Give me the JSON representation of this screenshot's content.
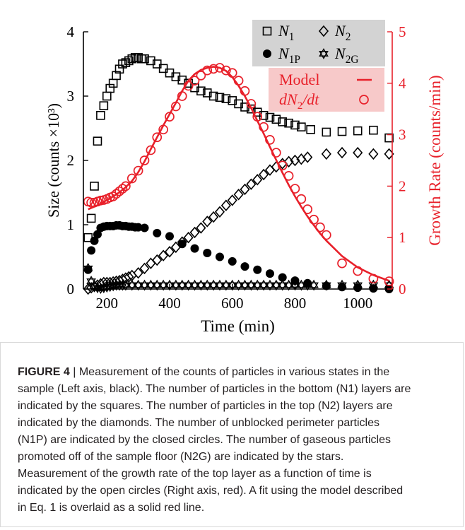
{
  "chart_data": {
    "type": "scatter",
    "xlabel": "Time (min)",
    "ylabel_left": "Size (counts ×10³)",
    "ylabel_right": "Growth Rate (counts/min)",
    "xlim": [
      125,
      1110
    ],
    "ylim_left": [
      0,
      4
    ],
    "ylim_right": [
      0,
      5
    ],
    "x_ticks": [
      200,
      400,
      600,
      800,
      1000
    ],
    "y_ticks_left": [
      0,
      1,
      2,
      3,
      4
    ],
    "y_ticks_right": [
      0,
      1,
      2,
      3,
      4,
      5
    ],
    "colors": {
      "left_axis": "#000000",
      "right_axis": "#e8202a",
      "legend_left_bg": "#d3d3d3",
      "legend_right_bg": "#f7c9c9"
    },
    "legend_left": [
      {
        "symbol": "square-open",
        "label": "N_1"
      },
      {
        "symbol": "diamond-open",
        "label": "N_2"
      },
      {
        "symbol": "circle-filled",
        "label": "N_1P"
      },
      {
        "symbol": "star-open",
        "label": "N_2G"
      }
    ],
    "legend_right": [
      {
        "symbol": "line",
        "label": "Model"
      },
      {
        "symbol": "circle-open",
        "label": "dN_2/dt"
      }
    ],
    "series": [
      {
        "name": "N_1",
        "axis": "left",
        "marker": "square-open",
        "x": [
          140,
          150,
          160,
          170,
          180,
          190,
          200,
          210,
          220,
          230,
          240,
          250,
          260,
          270,
          280,
          290,
          300,
          310,
          320,
          340,
          360,
          380,
          400,
          420,
          440,
          460,
          480,
          500,
          520,
          540,
          560,
          580,
          600,
          620,
          640,
          660,
          680,
          700,
          720,
          740,
          760,
          780,
          800,
          820,
          850,
          900,
          950,
          1000,
          1050,
          1100
        ],
        "y": [
          0.8,
          1.1,
          1.6,
          2.3,
          2.7,
          2.85,
          3.0,
          3.12,
          3.2,
          3.32,
          3.42,
          3.5,
          3.52,
          3.55,
          3.58,
          3.6,
          3.6,
          3.58,
          3.58,
          3.55,
          3.5,
          3.43,
          3.36,
          3.3,
          3.25,
          3.2,
          3.13,
          3.08,
          3.05,
          3.0,
          2.98,
          2.96,
          2.93,
          2.88,
          2.83,
          2.8,
          2.75,
          2.7,
          2.67,
          2.64,
          2.6,
          2.58,
          2.55,
          2.52,
          2.48,
          2.44,
          2.45,
          2.46,
          2.47,
          2.35
        ]
      },
      {
        "name": "N_2",
        "axis": "left",
        "marker": "diamond-open",
        "x": [
          140,
          150,
          160,
          170,
          180,
          190,
          200,
          210,
          220,
          230,
          240,
          250,
          260,
          270,
          280,
          300,
          320,
          340,
          360,
          380,
          400,
          420,
          440,
          460,
          480,
          500,
          520,
          540,
          560,
          580,
          600,
          620,
          640,
          660,
          680,
          700,
          720,
          740,
          760,
          780,
          800,
          820,
          840,
          900,
          950,
          1000,
          1050,
          1100
        ],
        "y": [
          0.0,
          0.02,
          0.04,
          0.06,
          0.08,
          0.1,
          0.1,
          0.1,
          0.11,
          0.12,
          0.13,
          0.15,
          0.17,
          0.19,
          0.21,
          0.25,
          0.32,
          0.4,
          0.45,
          0.52,
          0.58,
          0.65,
          0.73,
          0.8,
          0.88,
          0.95,
          1.05,
          1.12,
          1.2,
          1.3,
          1.38,
          1.47,
          1.55,
          1.63,
          1.7,
          1.78,
          1.85,
          1.9,
          1.95,
          1.98,
          2.0,
          2.02,
          2.05,
          2.1,
          2.12,
          2.12,
          2.1,
          2.1
        ]
      },
      {
        "name": "N_1P",
        "axis": "left",
        "marker": "circle-filled",
        "x": [
          140,
          150,
          160,
          170,
          180,
          190,
          200,
          210,
          220,
          230,
          240,
          250,
          260,
          270,
          280,
          290,
          300,
          320,
          360,
          400,
          440,
          480,
          520,
          560,
          600,
          640,
          680,
          720,
          760,
          800,
          840,
          900,
          950,
          1000,
          1050,
          1100
        ],
        "y": [
          0.3,
          0.6,
          0.75,
          0.85,
          0.95,
          0.97,
          0.98,
          0.98,
          0.98,
          0.99,
          0.99,
          0.98,
          0.98,
          0.97,
          0.97,
          0.96,
          0.96,
          0.95,
          0.87,
          0.82,
          0.7,
          0.63,
          0.56,
          0.5,
          0.43,
          0.35,
          0.3,
          0.24,
          0.18,
          0.13,
          0.09,
          0.05,
          0.03,
          0.02,
          0.01,
          0.0
        ]
      },
      {
        "name": "N_2G",
        "axis": "left",
        "marker": "star-open",
        "x": [
          140,
          150,
          160,
          170,
          180,
          190,
          200,
          210,
          220,
          230,
          240,
          250,
          260,
          280,
          300,
          320,
          340,
          360,
          380,
          400,
          420,
          440,
          460,
          480,
          500,
          520,
          540,
          560,
          580,
          600,
          620,
          640,
          660,
          680,
          700,
          720,
          740,
          760,
          780,
          800,
          820,
          840,
          860,
          900,
          950,
          1000,
          1050,
          1100
        ],
        "y": [
          0.32,
          0.12,
          0.05,
          0.02,
          0.01,
          0.02,
          0.03,
          0.04,
          0.05,
          0.06,
          0.06,
          0.06,
          0.06,
          0.06,
          0.06,
          0.06,
          0.06,
          0.06,
          0.06,
          0.06,
          0.06,
          0.06,
          0.06,
          0.06,
          0.06,
          0.06,
          0.06,
          0.06,
          0.06,
          0.06,
          0.06,
          0.06,
          0.06,
          0.06,
          0.06,
          0.06,
          0.06,
          0.06,
          0.06,
          0.06,
          0.06,
          0.06,
          0.06,
          0.06,
          0.06,
          0.06,
          0.06,
          0.06
        ]
      },
      {
        "name": "dN_2/dt",
        "axis": "right",
        "marker": "circle-open",
        "x": [
          140,
          150,
          160,
          170,
          180,
          190,
          200,
          210,
          220,
          230,
          240,
          250,
          260,
          280,
          300,
          320,
          340,
          360,
          380,
          400,
          420,
          440,
          460,
          480,
          500,
          520,
          540,
          560,
          580,
          600,
          620,
          640,
          660,
          680,
          700,
          720,
          740,
          760,
          780,
          800,
          820,
          840,
          860,
          880,
          900,
          950,
          1000,
          1050,
          1100
        ],
        "y": [
          1.7,
          1.68,
          1.68,
          1.7,
          1.72,
          1.73,
          1.75,
          1.78,
          1.8,
          1.85,
          1.9,
          1.95,
          2.0,
          2.15,
          2.3,
          2.5,
          2.7,
          2.95,
          3.1,
          3.35,
          3.55,
          3.75,
          3.95,
          4.05,
          4.15,
          4.25,
          4.28,
          4.3,
          4.25,
          4.2,
          4.05,
          3.85,
          3.6,
          3.35,
          3.15,
          2.9,
          2.65,
          2.4,
          2.2,
          1.95,
          1.75,
          1.55,
          1.35,
          1.2,
          1.05,
          0.5,
          0.35,
          0.2,
          0.15
        ]
      },
      {
        "name": "Model",
        "axis": "right",
        "marker": "line",
        "x": [
          140,
          160,
          180,
          200,
          220,
          240,
          260,
          280,
          300,
          320,
          340,
          360,
          380,
          400,
          420,
          440,
          460,
          480,
          500,
          520,
          540,
          560,
          580,
          600,
          620,
          640,
          660,
          680,
          700,
          720,
          740,
          760,
          780,
          800,
          820,
          840,
          860,
          880,
          900,
          950,
          1000,
          1050,
          1100
        ],
        "y": [
          1.55,
          1.6,
          1.66,
          1.73,
          1.8,
          1.88,
          1.98,
          2.1,
          2.27,
          2.48,
          2.72,
          2.95,
          3.18,
          3.4,
          3.62,
          3.85,
          4.05,
          4.18,
          4.26,
          4.3,
          4.32,
          4.3,
          4.24,
          4.12,
          3.95,
          3.75,
          3.52,
          3.27,
          3.02,
          2.76,
          2.51,
          2.26,
          2.02,
          1.8,
          1.6,
          1.41,
          1.24,
          1.08,
          0.94,
          0.64,
          0.42,
          0.27,
          0.16
        ]
      }
    ]
  },
  "caption": {
    "label": "FIGURE 4",
    "separator": " | ",
    "lines": [
      "Measurement of the counts of particles in various states in the",
      "sample (Left axis, black). The number of particles in the bottom (N1) layers are",
      "indicated by the squares. The number of particles in the top (N2) layers are",
      "indicated by the diamonds. The number of unblocked perimeter particles",
      "(N1P) are indicated by the closed circles. The number of gaseous particles",
      "promoted off of the sample floor (N2G) are indicated by the stars.",
      "Measurement of the growth rate of the top layer as a function of time is",
      "indicated by the open circles (Right axis, red). A fit using the model described",
      "in Eq. 1 is overlaid as a solid red line."
    ]
  }
}
